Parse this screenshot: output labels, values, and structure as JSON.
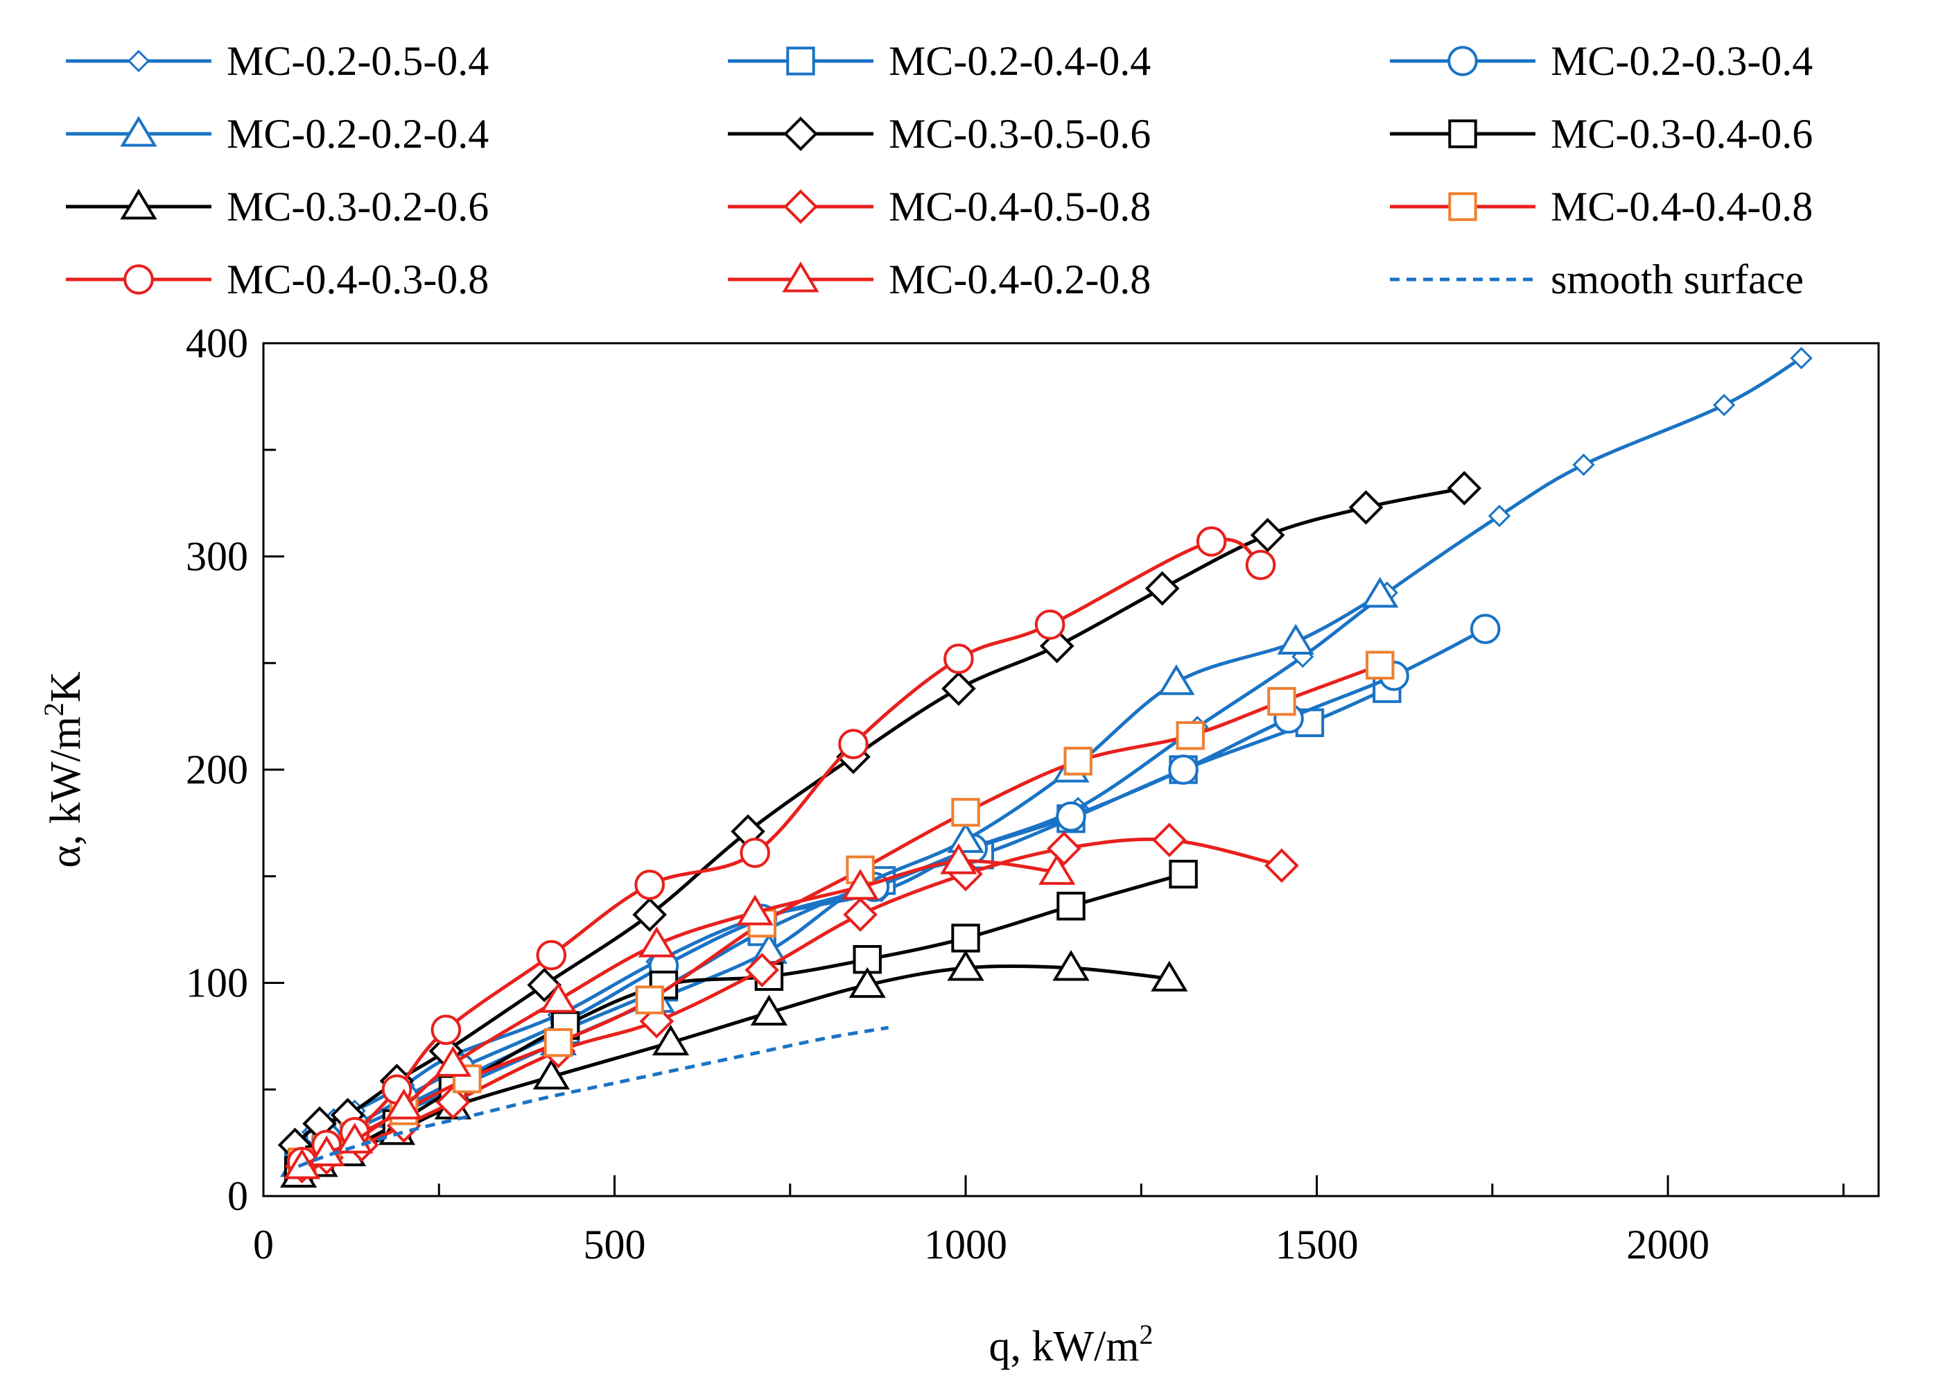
{
  "chart_data": {
    "type": "line",
    "title": "",
    "xlabel": "q, kW/m",
    "xlabel_sup": "2",
    "ylabel_prefix": "α,  kW/m",
    "ylabel_sup": "2",
    "ylabel_suffix": "K",
    "xlim": [
      0,
      2300
    ],
    "ylim": [
      0,
      400
    ],
    "xticks": [
      0,
      500,
      1000,
      1500,
      2000
    ],
    "yticks": [
      0,
      100,
      200,
      300,
      400
    ],
    "xtick_labels": [
      "0",
      "500",
      "1000",
      "1500",
      "2000"
    ],
    "ytick_labels": [
      "0",
      "100",
      "200",
      "300",
      "400"
    ],
    "grid": false,
    "legend_position": "top",
    "colors": {
      "blue": "#1a73c5",
      "black": "#000000",
      "red": "#e8201c",
      "orange": "#ef7f30"
    },
    "series": [
      {
        "name": "MC-0.2-0.5-0.4",
        "color": "#1a73c5",
        "marker": "diamond",
        "marker_size": "small",
        "marker_color": "#1a73c5",
        "line_style": "solid",
        "x": [
          45,
          70,
          100,
          130,
          200,
          270,
          420,
          560,
          700,
          880,
          1000,
          1160,
          1330,
          1480,
          1600,
          1760,
          1880,
          2080,
          2190
        ],
        "y": [
          24,
          30,
          36,
          40,
          52,
          66,
          85,
          110,
          130,
          143,
          162,
          182,
          220,
          253,
          283,
          319,
          343,
          371,
          393
        ]
      },
      {
        "name": "MC-0.2-0.4-0.4",
        "color": "#1a73c5",
        "marker": "square",
        "marker_size": "large",
        "marker_color": "#1a73c5",
        "line_style": "solid",
        "x": [
          50,
          80,
          120,
          200,
          280,
          430,
          570,
          710,
          880,
          1020,
          1150,
          1310,
          1490,
          1600
        ],
        "y": [
          18,
          24,
          30,
          42,
          55,
          78,
          98,
          124,
          148,
          160,
          177,
          200,
          222,
          238
        ]
      },
      {
        "name": "MC-0.2-0.3-0.4",
        "color": "#1a73c5",
        "marker": "circle",
        "marker_size": "large",
        "marker_color": "#1a73c5",
        "line_style": "solid",
        "x": [
          55,
          90,
          130,
          200,
          280,
          430,
          570,
          710,
          870,
          1010,
          1150,
          1310,
          1460,
          1610,
          1740
        ],
        "y": [
          20,
          27,
          33,
          46,
          60,
          82,
          108,
          130,
          145,
          163,
          178,
          200,
          224,
          244,
          266
        ]
      },
      {
        "name": "MC-0.2-0.2-0.4",
        "color": "#1a73c5",
        "marker": "triangle",
        "marker_size": "large",
        "marker_color": "#1a73c5",
        "line_style": "solid",
        "x": [
          50,
          80,
          120,
          190,
          270,
          420,
          560,
          720,
          850,
          1000,
          1150,
          1300,
          1470,
          1590
        ],
        "y": [
          15,
          20,
          26,
          38,
          50,
          72,
          92,
          115,
          145,
          167,
          200,
          241,
          260,
          282
        ]
      },
      {
        "name": "MC-0.3-0.5-0.6",
        "color": "#000000",
        "marker": "diamond",
        "marker_size": "large",
        "marker_color": "#000000",
        "line_style": "solid",
        "x": [
          45,
          80,
          120,
          190,
          260,
          400,
          550,
          690,
          840,
          990,
          1130,
          1280,
          1430,
          1570,
          1710
        ],
        "y": [
          24,
          34,
          38,
          54,
          68,
          99,
          132,
          171,
          206,
          238,
          258,
          285,
          310,
          323,
          332
        ]
      },
      {
        "name": "MC-0.3-0.4-0.6",
        "color": "#000000",
        "marker": "square",
        "marker_size": "large",
        "marker_color": "#000000",
        "line_style": "solid",
        "x": [
          50,
          80,
          120,
          190,
          270,
          430,
          570,
          720,
          860,
          1000,
          1150,
          1310
        ],
        "y": [
          12,
          17,
          22,
          34,
          50,
          80,
          99,
          103,
          111,
          121,
          136,
          151
        ]
      },
      {
        "name": "MC-0.3-0.2-0.6",
        "color": "#000000",
        "marker": "triangle",
        "marker_size": "large",
        "marker_color": "#000000",
        "line_style": "solid",
        "x": [
          50,
          80,
          120,
          190,
          270,
          410,
          580,
          720,
          860,
          1000,
          1150,
          1290
        ],
        "y": [
          10,
          15,
          20,
          30,
          42,
          56,
          72,
          86,
          99,
          107,
          107,
          102
        ]
      },
      {
        "name": "MC-0.4-0.5-0.8",
        "color": "#e8201c",
        "marker": "diamond",
        "marker_size": "large",
        "marker_color": "#e8201c",
        "line_style": "solid",
        "x": [
          55,
          90,
          140,
          200,
          270,
          420,
          560,
          710,
          850,
          1000,
          1140,
          1290,
          1450
        ],
        "y": [
          14,
          18,
          24,
          33,
          44,
          68,
          82,
          106,
          132,
          151,
          163,
          167,
          155
        ]
      },
      {
        "name": "MC-0.4-0.4-0.8",
        "color": "#e8201c",
        "marker": "square",
        "marker_size": "large",
        "marker_color": "#ef7f30",
        "line_style": "solid",
        "x": [
          55,
          90,
          130,
          200,
          290,
          420,
          550,
          710,
          850,
          1000,
          1160,
          1320,
          1450,
          1590
        ],
        "y": [
          16,
          22,
          28,
          40,
          55,
          72,
          92,
          128,
          153,
          180,
          204,
          216,
          232,
          249
        ]
      },
      {
        "name": "MC-0.4-0.3-0.8",
        "color": "#e8201c",
        "marker": "circle",
        "marker_size": "large",
        "marker_color": "#e8201c",
        "line_style": "solid",
        "x": [
          55,
          90,
          130,
          190,
          260,
          410,
          550,
          700,
          840,
          990,
          1120,
          1350,
          1420
        ],
        "y": [
          16,
          24,
          30,
          50,
          78,
          113,
          146,
          161,
          212,
          252,
          268,
          307,
          296
        ]
      },
      {
        "name": "MC-0.4-0.2-0.8",
        "color": "#e8201c",
        "marker": "triangle",
        "marker_size": "large",
        "marker_color": "#e8201c",
        "line_style": "solid",
        "x": [
          55,
          90,
          130,
          200,
          270,
          420,
          560,
          700,
          850,
          990,
          1130
        ],
        "y": [
          14,
          20,
          26,
          42,
          62,
          92,
          118,
          133,
          145,
          157,
          152
        ]
      },
      {
        "name": "smooth surface",
        "color": "#1a73c5",
        "marker": "none",
        "marker_size": "none",
        "marker_color": "#1a73c5",
        "line_style": "dashed",
        "x": [
          50,
          100,
          200,
          300,
          400,
          500,
          600,
          700,
          800,
          890
        ],
        "y": [
          14,
          20,
          30,
          38,
          46,
          53,
          60,
          67,
          74,
          79
        ]
      }
    ]
  }
}
